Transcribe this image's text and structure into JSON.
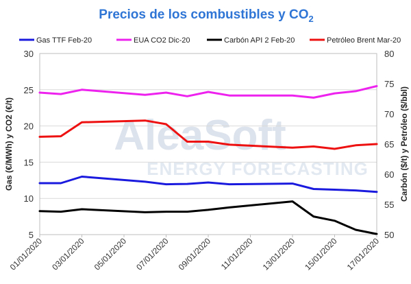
{
  "chart_data": {
    "type": "line",
    "title": "Precios de los combustibles y CO",
    "title_subscript": "2",
    "ylabel_left": "Gas (€/MWh) y CO2 (€/t)",
    "ylabel_right": "Carbón ($/t) y Petróleo ($/bbl)",
    "ylim_left": [
      5,
      30
    ],
    "ylim_right": [
      50,
      80
    ],
    "yticks_left": [
      5,
      10,
      15,
      20,
      25,
      30
    ],
    "yticks_right": [
      50,
      55,
      60,
      65,
      70,
      75,
      80
    ],
    "x_tick_labels": [
      "01/01/2020",
      "03/01/2020",
      "05/01/2020",
      "07/01/2020",
      "09/01/2020",
      "11/01/2020",
      "13/01/2020",
      "15/01/2020",
      "17/01/2020"
    ],
    "x_first_day": 1,
    "x_last_day": 17,
    "grid": "horizontal",
    "legend_position": "top",
    "watermark": {
      "main": "AleaSoft",
      "sub": "ENERGY FORECASTING"
    },
    "series": [
      {
        "name": "Gas TTF Feb-20",
        "axis": "left",
        "color": "#1a1adf",
        "x": [
          1,
          2,
          3,
          6,
          7,
          8,
          9,
          10,
          13,
          14,
          15,
          16,
          17
        ],
        "y": [
          12.1,
          12.1,
          13.0,
          12.3,
          11.95,
          12.0,
          12.2,
          11.95,
          12.05,
          11.3,
          11.2,
          11.1,
          10.9
        ]
      },
      {
        "name": "EUA CO2 Dic-20",
        "axis": "left",
        "color": "#ee22ee",
        "x": [
          1,
          2,
          3,
          6,
          7,
          8,
          9,
          10,
          13,
          14,
          15,
          16,
          17
        ],
        "y": [
          24.6,
          24.4,
          25.0,
          24.3,
          24.6,
          24.1,
          24.7,
          24.2,
          24.2,
          23.9,
          24.5,
          24.8,
          25.5
        ]
      },
      {
        "name": "Carbón API 2 Feb-20",
        "axis": "right",
        "color": "#000000",
        "x": [
          1,
          2,
          3,
          6,
          7,
          8,
          9,
          10,
          13,
          14,
          15,
          16,
          17
        ],
        "y": [
          53.9,
          53.8,
          54.2,
          53.7,
          53.8,
          53.8,
          54.1,
          54.5,
          55.5,
          53.0,
          52.3,
          50.8,
          50.1
        ]
      },
      {
        "name": "Petróleo Brent Mar-20",
        "axis": "right",
        "color": "#ee1111",
        "x": [
          1,
          2,
          3,
          6,
          7,
          8,
          9,
          10,
          13,
          14,
          15,
          16,
          17
        ],
        "y": [
          66.2,
          66.3,
          68.6,
          68.9,
          68.3,
          65.4,
          65.4,
          64.9,
          64.4,
          64.6,
          64.2,
          64.8,
          65.0
        ]
      }
    ]
  }
}
